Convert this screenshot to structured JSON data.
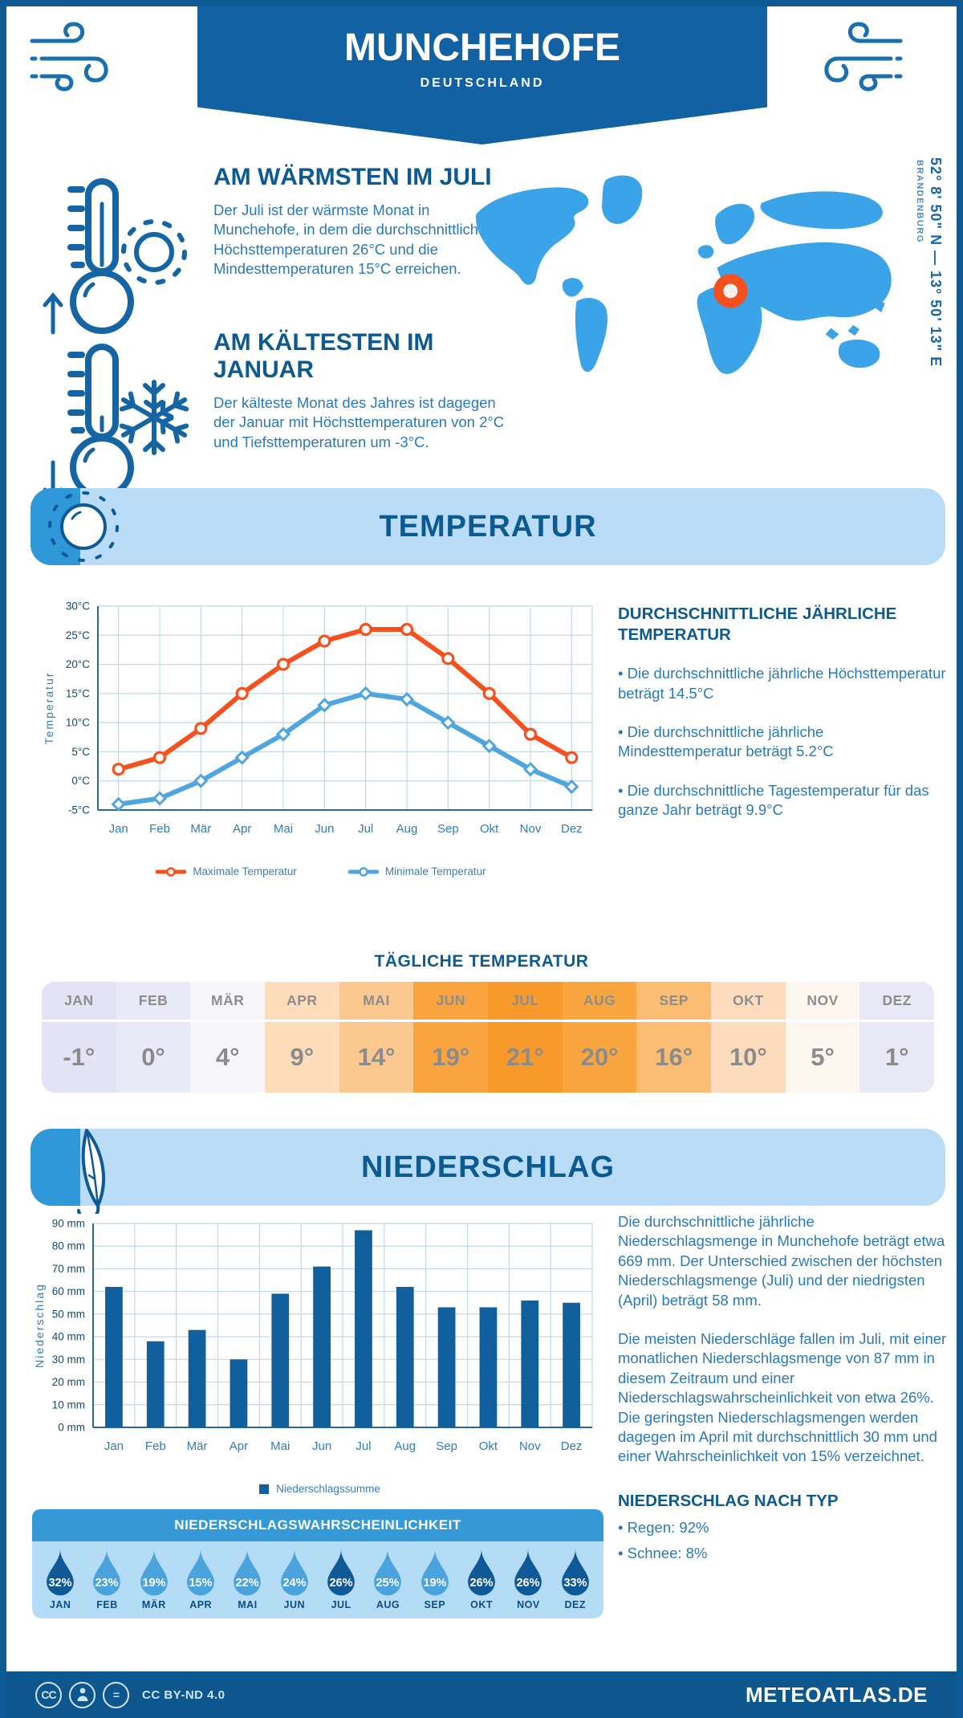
{
  "colors": {
    "primary": "#0e5a96",
    "banner": "#1262a3",
    "footer": "#0d568e",
    "map_blue": "#3ba3e8",
    "marker_orange": "#f4511e",
    "panel_light": "#b9ddf8",
    "panel_tab": "#2e98d8",
    "prob_header": "#3598d7",
    "prob_body": "#b5dcf7",
    "drop_dark": "#0f5a96",
    "drop_medium": "#4aa3dc",
    "bar": "#115f9c",
    "line_max": "#f4511e",
    "line_min": "#4fa5de"
  },
  "header": {
    "title": "MUNCHEHOFE",
    "subtitle": "DEUTSCHLAND"
  },
  "location": {
    "coordinates": "52° 8' 50\" N — 13° 50' 13\" E",
    "region": "BRANDENBURG"
  },
  "highlights": {
    "warmest": {
      "title": "AM WÄRMSTEN IM JULI",
      "body": "Der Juli ist der wärmste Monat in Munchehofe, in dem die durchschnittlichen Höchsttemperaturen 26°C und die Mindesttemperaturen 15°C erreichen."
    },
    "coldest": {
      "title": "AM KÄLTESTEN IM JANUAR",
      "body": "Der kälteste Monat des Jahres ist dagegen der Januar mit Höchsttemperaturen von 2°C und Tiefsttemperaturen um -3°C."
    }
  },
  "sections": {
    "temperature": {
      "title": "TEMPERATUR"
    },
    "precipitation": {
      "title": "NIEDERSCHLAG"
    }
  },
  "chart_data": [
    {
      "type": "line",
      "categories": [
        "Jan",
        "Feb",
        "Mär",
        "Apr",
        "Mai",
        "Jun",
        "Jul",
        "Aug",
        "Sep",
        "Okt",
        "Nov",
        "Dez"
      ],
      "ylabel": "Temperatur",
      "ylim": [
        -5,
        30
      ],
      "ytick_step": 5,
      "ytick_suffix": "°C",
      "grid": true,
      "legend_position": "bottom",
      "series": [
        {
          "name": "Maximale Temperatur",
          "color": "#f4511e",
          "marker": "circle",
          "values": [
            2,
            4,
            9,
            15,
            20,
            24,
            26,
            26,
            21,
            15,
            8,
            4
          ]
        },
        {
          "name": "Minimale Temperatur",
          "color": "#4fa5de",
          "marker": "diamond",
          "values": [
            -4,
            -3,
            0,
            4,
            8,
            13,
            15,
            14,
            10,
            6,
            2,
            -1
          ]
        }
      ]
    },
    {
      "type": "bar",
      "categories": [
        "Jan",
        "Feb",
        "Mär",
        "Apr",
        "Mai",
        "Jun",
        "Jul",
        "Aug",
        "Sep",
        "Okt",
        "Nov",
        "Dez"
      ],
      "ylabel": "Niederschlag",
      "ylim": [
        0,
        90
      ],
      "ytick_step": 10,
      "ytick_suffix": " mm",
      "grid": true,
      "legend_position": "bottom",
      "series": [
        {
          "name": "Niederschlagssumme",
          "color": "#115f9c",
          "values": [
            62,
            38,
            43,
            30,
            59,
            71,
            87,
            62,
            53,
            53,
            56,
            55
          ]
        }
      ]
    }
  ],
  "annual": {
    "title": "DURCHSCHNITTLICHE JÄHRLICHE TEMPERATUR",
    "bullets": [
      "• Die durchschnittliche jährliche Höchsttemperatur beträgt 14.5°C",
      "• Die durchschnittliche jährliche Mindesttemperatur beträgt 5.2°C",
      "• Die durchschnittliche Tagestemperatur für das ganze Jahr beträgt 9.9°C"
    ]
  },
  "daily": {
    "title": "TÄGLICHE TEMPERATUR",
    "months": [
      {
        "label": "JAN",
        "value": "-1°",
        "color": "#e3e3f5"
      },
      {
        "label": "FEB",
        "value": "0°",
        "color": "#e9e9f7"
      },
      {
        "label": "MÄR",
        "value": "4°",
        "color": "#f6f6fb"
      },
      {
        "label": "APR",
        "value": "9°",
        "color": "#fcdcba"
      },
      {
        "label": "MAI",
        "value": "14°",
        "color": "#fbc88f"
      },
      {
        "label": "JUN",
        "value": "19°",
        "color": "#f9a43e"
      },
      {
        "label": "JUL",
        "value": "21°",
        "color": "#f89a2b"
      },
      {
        "label": "AUG",
        "value": "20°",
        "color": "#f9a640"
      },
      {
        "label": "SEP",
        "value": "16°",
        "color": "#fabd72"
      },
      {
        "label": "OKT",
        "value": "10°",
        "color": "#fcdcbc"
      },
      {
        "label": "NOV",
        "value": "5°",
        "color": "#fdf7f0"
      },
      {
        "label": "DEZ",
        "value": "1°",
        "color": "#e8e8f6"
      }
    ]
  },
  "precipitation": {
    "para1": "Die durchschnittliche jährliche Niederschlagsmenge in Munchehofe beträgt etwa 669 mm. Der Unterschied zwischen der höchsten Niederschlagsmenge (Juli) und der niedrigsten (April) beträgt 58 mm.",
    "para2": "Die meisten Niederschläge fallen im Juli, mit einer monatlichen Niederschlagsmenge von 87 mm in diesem Zeitraum und einer Niederschlagswahrscheinlichkeit von etwa 26%. Die geringsten Niederschlagsmengen werden dagegen im April mit durchschnittlich 30 mm und einer Wahrscheinlichkeit von 15% verzeichnet.",
    "type_title": "NIEDERSCHLAG NACH TYP",
    "type_bullets": [
      "• Regen: 92%",
      "• Schnee: 8%"
    ]
  },
  "probability": {
    "title": "NIEDERSCHLAGSWAHRSCHEINLICHKEIT",
    "items": [
      {
        "month": "JAN",
        "value": "32%",
        "dark": true
      },
      {
        "month": "FEB",
        "value": "23%",
        "dark": false
      },
      {
        "month": "MÄR",
        "value": "19%",
        "dark": false
      },
      {
        "month": "APR",
        "value": "15%",
        "dark": false
      },
      {
        "month": "MAI",
        "value": "22%",
        "dark": false
      },
      {
        "month": "JUN",
        "value": "24%",
        "dark": false
      },
      {
        "month": "JUL",
        "value": "26%",
        "dark": true
      },
      {
        "month": "AUG",
        "value": "25%",
        "dark": false
      },
      {
        "month": "SEP",
        "value": "19%",
        "dark": false
      },
      {
        "month": "OKT",
        "value": "26%",
        "dark": true
      },
      {
        "month": "NOV",
        "value": "26%",
        "dark": true
      },
      {
        "month": "DEZ",
        "value": "33%",
        "dark": true
      }
    ]
  },
  "footer": {
    "license": "CC BY-ND 4.0",
    "site": "METEOATLAS.DE"
  }
}
